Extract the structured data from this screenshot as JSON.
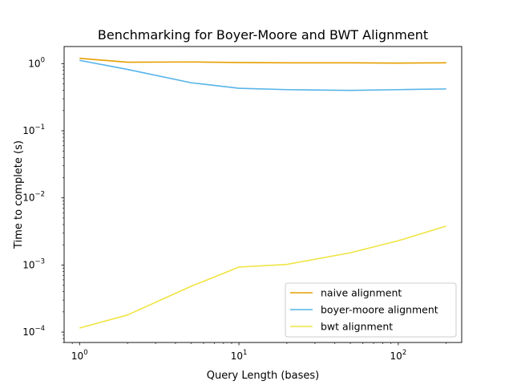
{
  "chart_data": {
    "type": "line",
    "title": "Benchmarking for Boyer-Moore and BWT Alignment",
    "xlabel": "Query Length (bases)",
    "ylabel": "Time to complete (s)",
    "xscale": "log",
    "yscale": "log",
    "xlim": [
      0.8,
      250
    ],
    "ylim": [
      7e-05,
      1.8
    ],
    "grid": false,
    "legend_position": "lower-right",
    "x_ticks": [
      {
        "value": 1,
        "base": "10",
        "exp": "0"
      },
      {
        "value": 10,
        "base": "10",
        "exp": "1"
      },
      {
        "value": 100,
        "base": "10",
        "exp": "2"
      }
    ],
    "y_ticks": [
      {
        "value": 0.0001,
        "base": "10",
        "exp": "−4"
      },
      {
        "value": 0.001,
        "base": "10",
        "exp": "−3"
      },
      {
        "value": 0.01,
        "base": "10",
        "exp": "−2"
      },
      {
        "value": 0.1,
        "base": "10",
        "exp": "−1"
      },
      {
        "value": 1,
        "base": "10",
        "exp": "0"
      }
    ],
    "x": [
      1,
      2,
      5,
      10,
      20,
      50,
      100,
      200
    ],
    "series": [
      {
        "name": "naive alignment",
        "color": "#E69F00",
        "values": [
          1.2,
          1.05,
          1.06,
          1.04,
          1.03,
          1.03,
          1.02,
          1.03
        ]
      },
      {
        "name": "boyer-moore alignment",
        "color": "#56B4E9",
        "values": [
          1.12,
          0.82,
          0.52,
          0.43,
          0.41,
          0.4,
          0.41,
          0.42
        ]
      },
      {
        "name": "bwt alignment",
        "color": "#F0E442",
        "values": [
          0.000115,
          0.00018,
          0.00048,
          0.00093,
          0.00102,
          0.00152,
          0.0023,
          0.0038
        ]
      }
    ]
  }
}
